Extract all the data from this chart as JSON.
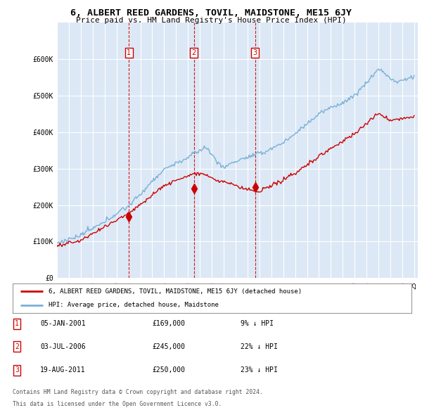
{
  "title": "6, ALBERT REED GARDENS, TOVIL, MAIDSTONE, ME15 6JY",
  "subtitle": "Price paid vs. HM Land Registry's House Price Index (HPI)",
  "background_color": "#ffffff",
  "plot_background": "#dce8f5",
  "grid_color": "#ffffff",
  "hpi_color": "#7ab0d8",
  "price_color": "#cc0000",
  "sale_marker_color": "#cc0000",
  "sale_label_color": "#cc0000",
  "vline_color": "#cc0000",
  "ylim": [
    0,
    700000
  ],
  "yticks": [
    0,
    100000,
    200000,
    300000,
    400000,
    500000,
    600000
  ],
  "ytick_labels": [
    "£0",
    "£100K",
    "£200K",
    "£300K",
    "£400K",
    "£500K",
    "£600K"
  ],
  "sale_dates": [
    2001.04,
    2006.5,
    2011.63
  ],
  "sale_prices": [
    169000,
    245000,
    250000
  ],
  "sale_labels": [
    "1",
    "2",
    "3"
  ],
  "legend_entries": [
    {
      "label": "6, ALBERT REED GARDENS, TOVIL, MAIDSTONE, ME15 6JY (detached house)",
      "color": "#cc0000"
    },
    {
      "label": "HPI: Average price, detached house, Maidstone",
      "color": "#7ab0d8"
    }
  ],
  "table_rows": [
    {
      "num": "1",
      "date": "05-JAN-2001",
      "price": "£169,000",
      "pct": "9% ↓ HPI"
    },
    {
      "num": "2",
      "date": "03-JUL-2006",
      "price": "£245,000",
      "pct": "22% ↓ HPI"
    },
    {
      "num": "3",
      "date": "19-AUG-2011",
      "price": "£250,000",
      "pct": "23% ↓ HPI"
    }
  ],
  "footer": [
    "Contains HM Land Registry data © Crown copyright and database right 2024.",
    "This data is licensed under the Open Government Licence v3.0."
  ]
}
